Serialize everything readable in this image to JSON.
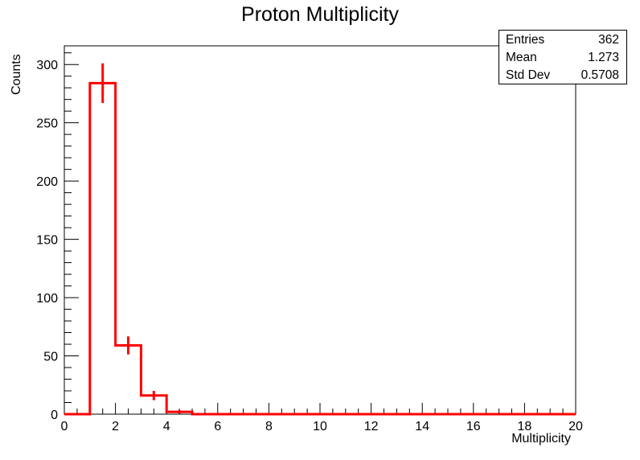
{
  "chart_data": {
    "type": "histogram",
    "title": "Proton Multiplicity",
    "xlabel": "Multiplicity",
    "ylabel": "Counts",
    "xlim": [
      0,
      20
    ],
    "ylim": [
      0,
      316
    ],
    "xticks": [
      0,
      2,
      4,
      6,
      8,
      10,
      12,
      14,
      16,
      18,
      20
    ],
    "yticks": [
      0,
      50,
      100,
      150,
      200,
      250,
      300
    ],
    "bin_width": 1,
    "bins": [
      {
        "x0": 0,
        "x1": 1,
        "value": 0
      },
      {
        "x0": 1,
        "x1": 2,
        "value": 284
      },
      {
        "x0": 2,
        "x1": 3,
        "value": 59
      },
      {
        "x0": 3,
        "x1": 4,
        "value": 16
      },
      {
        "x0": 4,
        "x1": 5,
        "value": 2
      },
      {
        "x0": 5,
        "x1": 6,
        "value": 0
      },
      {
        "x0": 6,
        "x1": 7,
        "value": 0
      },
      {
        "x0": 7,
        "x1": 8,
        "value": 0
      },
      {
        "x0": 8,
        "x1": 9,
        "value": 0
      },
      {
        "x0": 9,
        "x1": 10,
        "value": 0
      },
      {
        "x0": 10,
        "x1": 11,
        "value": 0
      },
      {
        "x0": 11,
        "x1": 12,
        "value": 0
      },
      {
        "x0": 12,
        "x1": 13,
        "value": 0
      },
      {
        "x0": 13,
        "x1": 14,
        "value": 0
      },
      {
        "x0": 14,
        "x1": 15,
        "value": 0
      },
      {
        "x0": 15,
        "x1": 16,
        "value": 0
      },
      {
        "x0": 16,
        "x1": 17,
        "value": 0
      },
      {
        "x0": 17,
        "x1": 18,
        "value": 0
      },
      {
        "x0": 18,
        "x1": 19,
        "value": 0
      },
      {
        "x0": 19,
        "x1": 20,
        "value": 0
      }
    ],
    "errors": [
      0,
      17,
      7.7,
      4,
      1.4,
      0,
      0,
      0,
      0,
      0,
      0,
      0,
      0,
      0,
      0,
      0,
      0,
      0,
      0,
      0
    ],
    "line_color": "#ff0000",
    "stats": {
      "entries_label": "Entries",
      "entries_value": "362",
      "mean_label": "Mean",
      "mean_value": "1.273",
      "stddev_label": "Std Dev",
      "stddev_value": "0.5708"
    }
  }
}
